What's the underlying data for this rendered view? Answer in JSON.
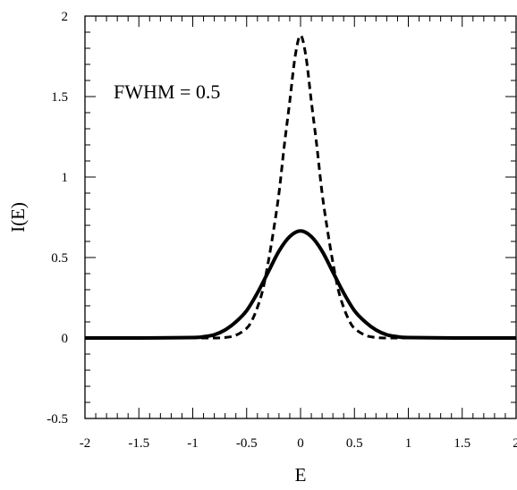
{
  "chart_data": {
    "type": "line",
    "title": "",
    "xlabel": "E",
    "ylabel": "I(E)",
    "xlim": [
      -2,
      2
    ],
    "ylim": [
      -0.5,
      2
    ],
    "grid": false,
    "x_ticks": [
      "-2",
      "-1.5",
      "-1",
      "-0.5",
      "0",
      "0.5",
      "1",
      "1.5",
      "2"
    ],
    "y_ticks": [
      "-0.5",
      "0",
      "0.5",
      "1",
      "1.5",
      "2"
    ],
    "annotation": "FWHM = 0.5",
    "series": [
      {
        "style": "solid",
        "color": "#000000",
        "x": [
          -2,
          -1.5,
          -1.0,
          -0.9,
          -0.8,
          -0.7,
          -0.6,
          -0.5,
          -0.4,
          -0.3,
          -0.2,
          -0.1,
          0,
          0.1,
          0.2,
          0.3,
          0.4,
          0.5,
          0.6,
          0.7,
          0.8,
          0.9,
          1.0,
          1.5,
          2
        ],
        "y": [
          0,
          0,
          0.003,
          0.008,
          0.02,
          0.05,
          0.1,
          0.17,
          0.28,
          0.41,
          0.54,
          0.63,
          0.665,
          0.63,
          0.54,
          0.41,
          0.28,
          0.17,
          0.1,
          0.05,
          0.02,
          0.008,
          0.003,
          0,
          0
        ]
      },
      {
        "style": "dashed",
        "color": "#000000",
        "x": [
          -2,
          -1.5,
          -1.0,
          -0.8,
          -0.7,
          -0.6,
          -0.5,
          -0.45,
          -0.4,
          -0.35,
          -0.3,
          -0.25,
          -0.2,
          -0.15,
          -0.1,
          -0.05,
          0,
          0.05,
          0.1,
          0.15,
          0.2,
          0.25,
          0.3,
          0.35,
          0.4,
          0.45,
          0.5,
          0.6,
          0.7,
          0.8,
          1.0,
          1.5,
          2
        ],
        "y": [
          0,
          0,
          0,
          0,
          0.003,
          0.017,
          0.06,
          0.11,
          0.19,
          0.3,
          0.47,
          0.67,
          0.9,
          1.2,
          1.47,
          1.75,
          1.88,
          1.75,
          1.47,
          1.2,
          0.9,
          0.67,
          0.47,
          0.3,
          0.19,
          0.11,
          0.06,
          0.017,
          0.003,
          0,
          0,
          0,
          0
        ]
      }
    ]
  }
}
